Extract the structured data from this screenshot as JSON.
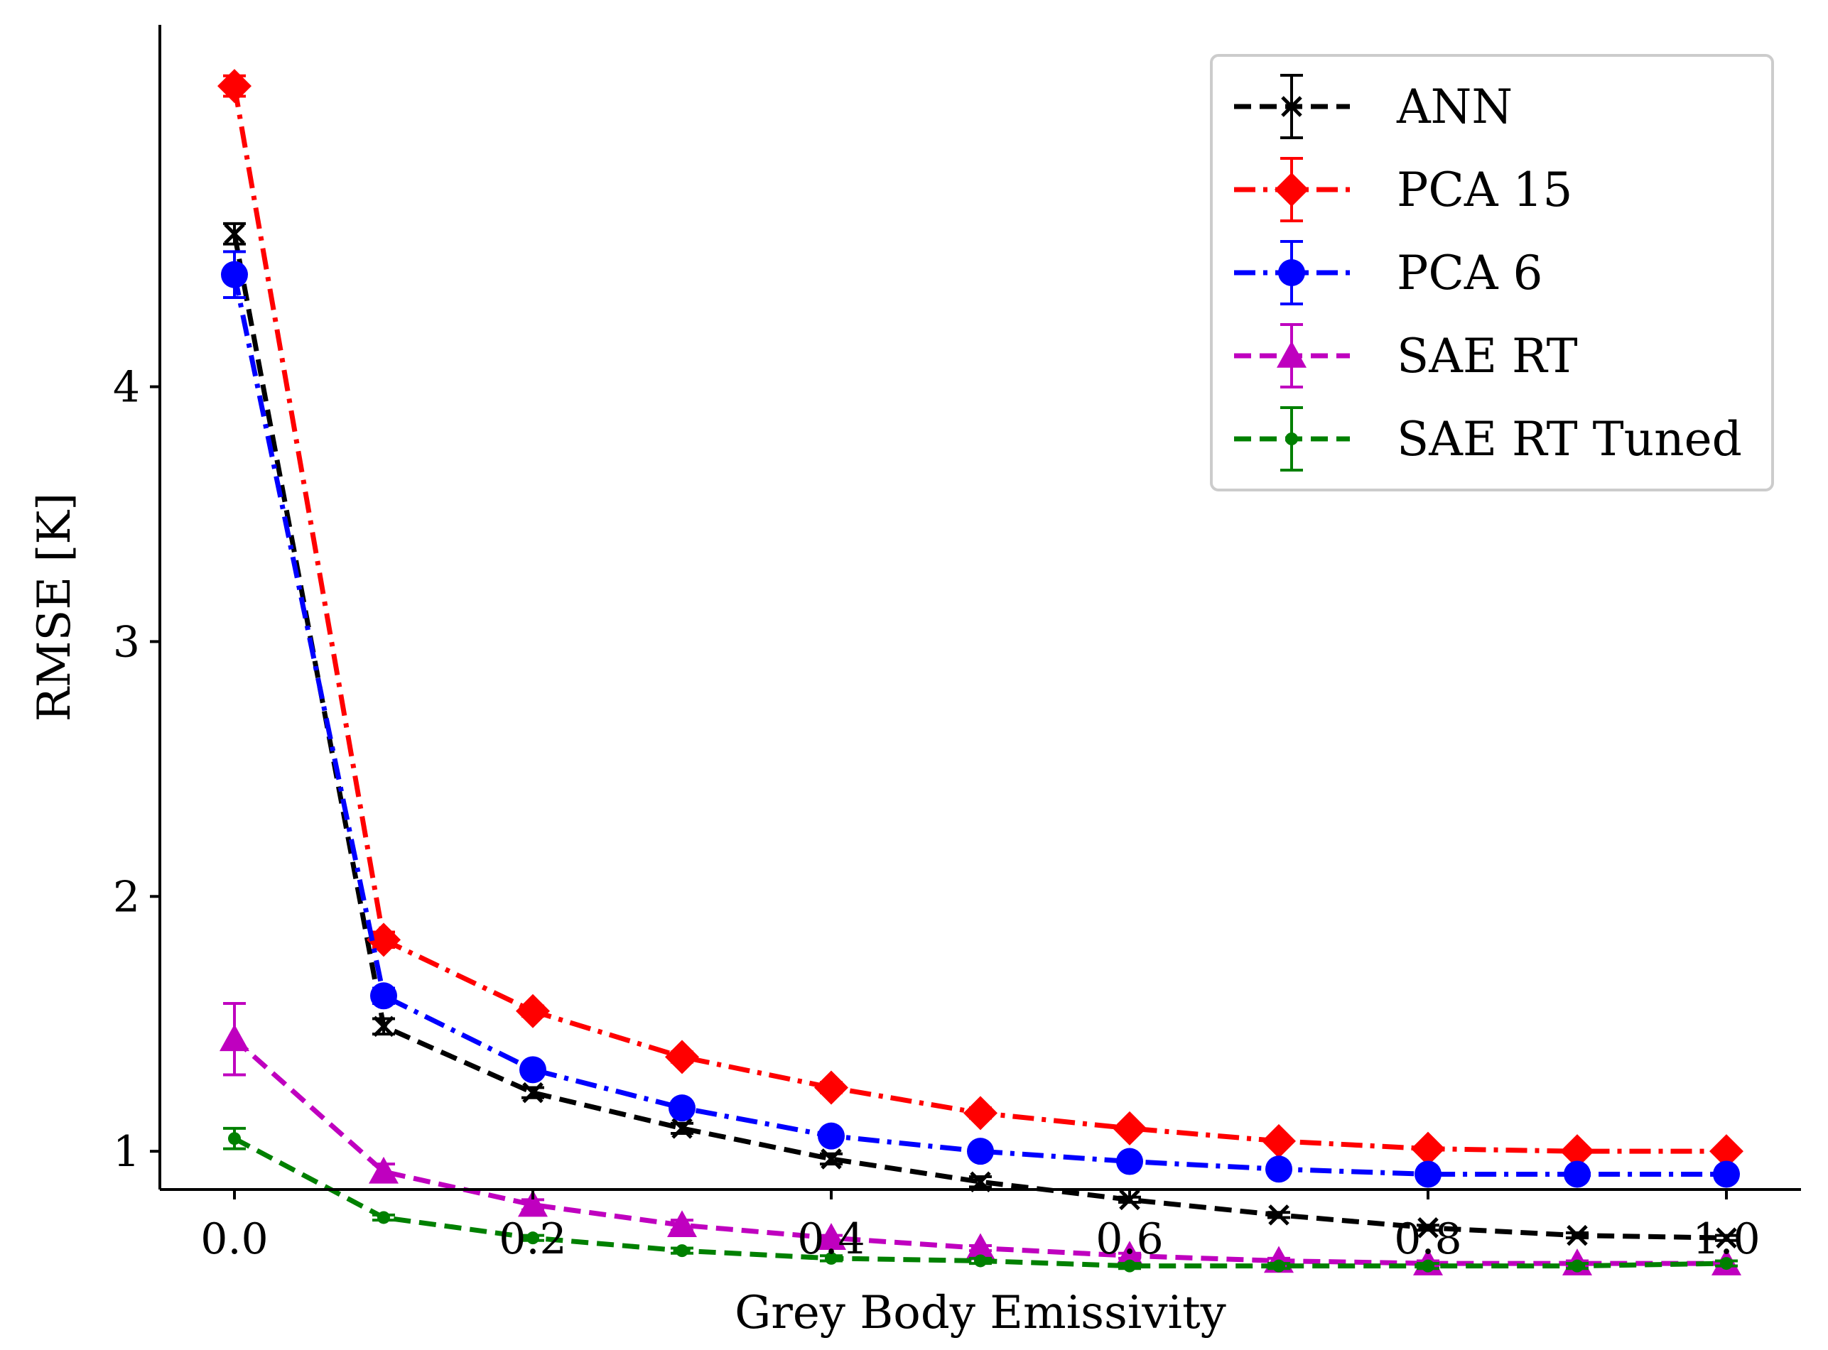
{
  "chart_data": {
    "type": "line",
    "title": "",
    "xlabel": "Grey Body Emissivity",
    "ylabel": "RMSE [K]",
    "xlim": [
      -0.05,
      1.05
    ],
    "ylim": [
      0.85,
      5.42
    ],
    "xticks": [
      0.0,
      0.2,
      0.4,
      0.6,
      0.8,
      1.0
    ],
    "xtick_labels": [
      "0.0",
      "0.2",
      "0.4",
      "0.6",
      "0.8",
      "1.0"
    ],
    "yticks": [
      1,
      2,
      3,
      4
    ],
    "ytick_labels": [
      "1",
      "2",
      "3",
      "4"
    ],
    "legend_position": "top-right",
    "x": [
      0.0,
      0.1,
      0.2,
      0.3,
      0.4,
      0.5,
      0.6,
      0.7,
      0.8,
      0.9,
      1.0
    ],
    "series": [
      {
        "name": "ANN",
        "color": "#000000",
        "marker": "x",
        "linestyle": "dashed",
        "values": [
          4.6,
          1.49,
          1.23,
          1.09,
          0.97,
          0.88,
          0.81,
          0.75,
          0.7,
          0.67,
          0.66
        ],
        "errors": [
          0.04,
          0.03,
          0.02,
          0.02,
          0.02,
          0.02,
          0.01,
          0.01,
          0.01,
          0.01,
          0.01
        ]
      },
      {
        "name": "PCA 15",
        "color": "#ff0000",
        "marker": "diamond",
        "linestyle": "dashdot",
        "values": [
          5.18,
          1.83,
          1.55,
          1.37,
          1.25,
          1.15,
          1.09,
          1.04,
          1.01,
          1.0,
          1.0
        ],
        "errors": [
          0.04,
          0.03,
          0.02,
          0.02,
          0.02,
          0.02,
          0.01,
          0.01,
          0.01,
          0.01,
          0.01
        ]
      },
      {
        "name": "PCA 6",
        "color": "#0000ff",
        "marker": "circle",
        "linestyle": "dashdot",
        "values": [
          4.44,
          1.61,
          1.32,
          1.17,
          1.06,
          1.0,
          0.96,
          0.93,
          0.91,
          0.91,
          0.91
        ],
        "errors": [
          0.09,
          0.03,
          0.02,
          0.02,
          0.02,
          0.01,
          0.01,
          0.01,
          0.01,
          0.01,
          0.01
        ]
      },
      {
        "name": "SAE RT",
        "color": "#bf00bf",
        "marker": "triangle",
        "linestyle": "dashed",
        "values": [
          1.44,
          0.92,
          0.79,
          0.71,
          0.66,
          0.62,
          0.59,
          0.57,
          0.56,
          0.56,
          0.56
        ],
        "errors": [
          0.14,
          0.03,
          0.02,
          0.02,
          0.01,
          0.01,
          0.01,
          0.01,
          0.01,
          0.01,
          0.01
        ]
      },
      {
        "name": "SAE RT Tuned",
        "color": "#008000",
        "marker": "point",
        "linestyle": "dashed",
        "values": [
          1.05,
          0.74,
          0.66,
          0.61,
          0.58,
          0.57,
          0.55,
          0.55,
          0.55,
          0.55,
          0.56
        ],
        "errors": [
          0.04,
          0.01,
          0.01,
          0.01,
          0.01,
          0.01,
          0.01,
          0.01,
          0.01,
          0.01,
          0.01
        ]
      }
    ]
  }
}
